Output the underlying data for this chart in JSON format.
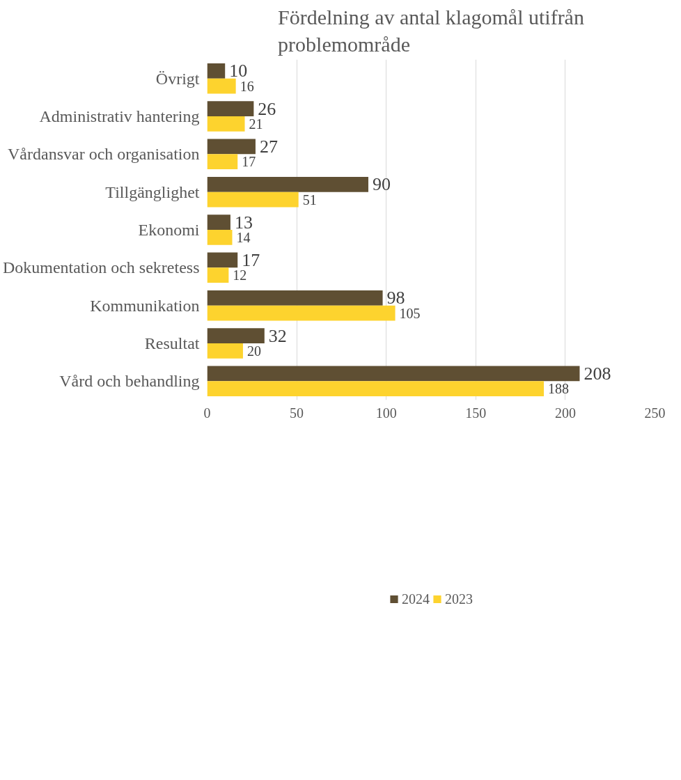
{
  "chart_data": {
    "type": "bar",
    "orientation": "horizontal",
    "title": "Fördelning av antal klagomål utifrån problemområde",
    "categories": [
      "Övrigt",
      "Administrativ hantering",
      "Vårdansvar och organisation",
      "Tillgänglighet",
      "Ekonomi",
      "Dokumentation och sekretess",
      "Kommunikation",
      "Resultat",
      "Vård och behandling"
    ],
    "series": [
      {
        "name": "2024",
        "color": "#5f4f33",
        "values": [
          10,
          26,
          27,
          90,
          13,
          17,
          98,
          32,
          208
        ]
      },
      {
        "name": "2023",
        "color": "#fdd32e",
        "values": [
          16,
          21,
          17,
          51,
          14,
          12,
          105,
          20,
          188
        ]
      }
    ],
    "xlim": [
      0,
      250
    ],
    "xticks": [
      0,
      50,
      100,
      150,
      200,
      250
    ],
    "grid": "x",
    "legend": "bottom",
    "data_labels": true
  }
}
